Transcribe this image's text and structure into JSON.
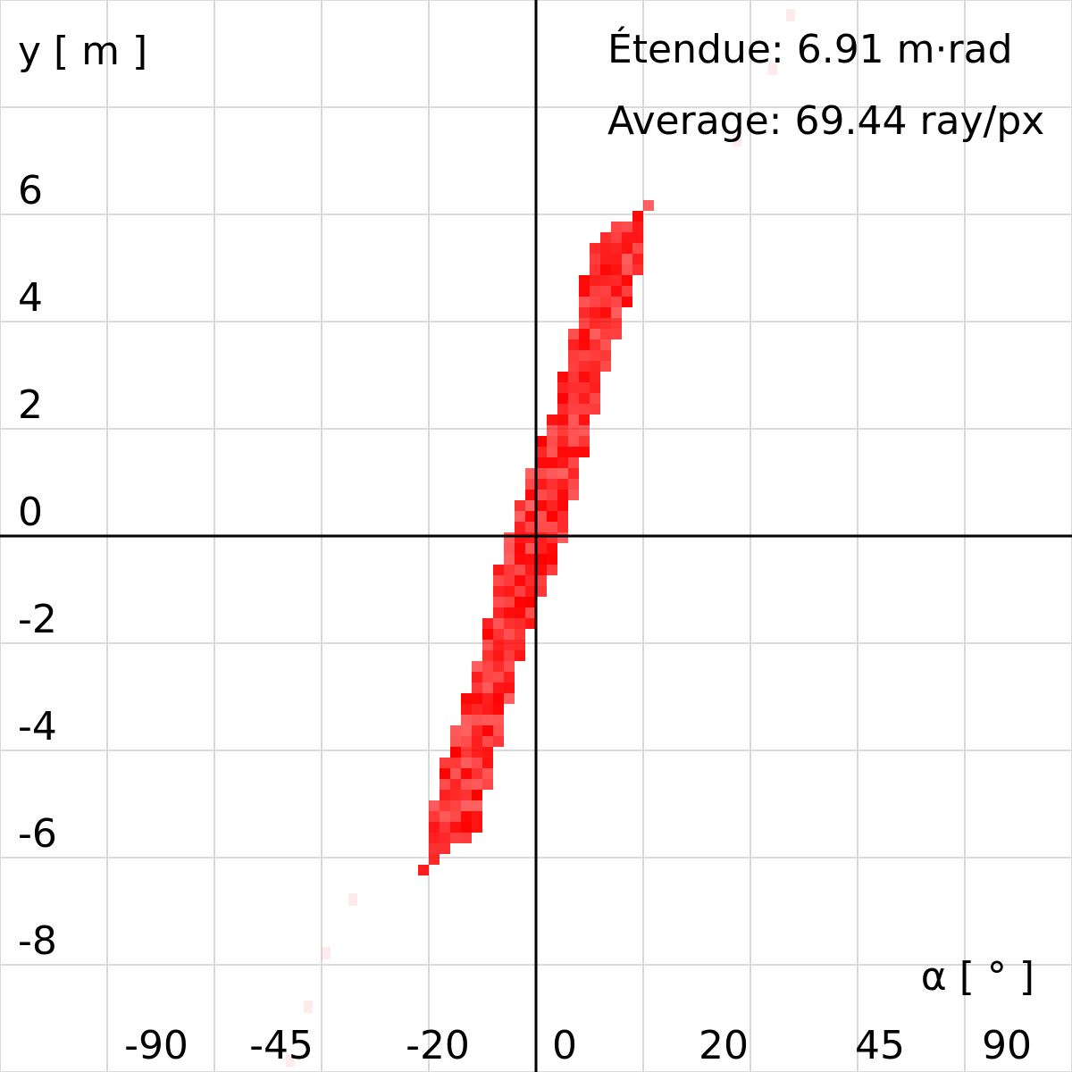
{
  "chart_data": {
    "type": "heatmap",
    "title": "",
    "xlabel": "α [ ° ]",
    "ylabel": "y [ m ]",
    "annotations": {
      "etendue": "Étendue: 6.91 m·rad",
      "average": "Average: 69.44 ray/px"
    },
    "x_axis": {
      "scale": "tangent",
      "ticks": [
        {
          "value": -90,
          "label": "-90"
        },
        {
          "value": -45,
          "label": "-45"
        },
        {
          "value": -20,
          "label": "-20"
        },
        {
          "value": 0,
          "label": "0"
        },
        {
          "value": 20,
          "label": "20"
        },
        {
          "value": 45,
          "label": "45"
        },
        {
          "value": 90,
          "label": "90"
        }
      ]
    },
    "y_axis": {
      "range": [
        -10,
        10
      ],
      "ticks": [
        {
          "value": 6,
          "label": "6"
        },
        {
          "value": 4,
          "label": "4"
        },
        {
          "value": 2,
          "label": "2"
        },
        {
          "value": 0,
          "label": "0"
        },
        {
          "value": -2,
          "label": "-2"
        },
        {
          "value": -4,
          "label": "-4"
        },
        {
          "value": -6,
          "label": "-6"
        },
        {
          "value": -8,
          "label": "-8"
        }
      ]
    },
    "grid": true,
    "colors": {
      "fill": "#ff0000",
      "grid": "#d9d9d9",
      "axis": "#000000"
    },
    "region_outline": [
      {
        "x": -28,
        "y": -6.3
      },
      {
        "x": -25,
        "y": -6.0
      },
      {
        "x": -15,
        "y": -5.5
      },
      {
        "x": -5,
        "y": -2.5
      },
      {
        "x": 0,
        "y": -1.5
      },
      {
        "x": 8,
        "y": 0.0
      },
      {
        "x": 16,
        "y": 2.5
      },
      {
        "x": 26,
        "y": 5.0
      },
      {
        "x": 28,
        "y": 6.3
      },
      {
        "x": 25,
        "y": 6.0
      },
      {
        "x": 15,
        "y": 5.5
      },
      {
        "x": 5,
        "y": 2.5
      },
      {
        "x": 0,
        "y": 1.5
      },
      {
        "x": -8,
        "y": 0.0
      },
      {
        "x": -16,
        "y": -2.5
      },
      {
        "x": -26,
        "y": -5.0
      }
    ]
  }
}
